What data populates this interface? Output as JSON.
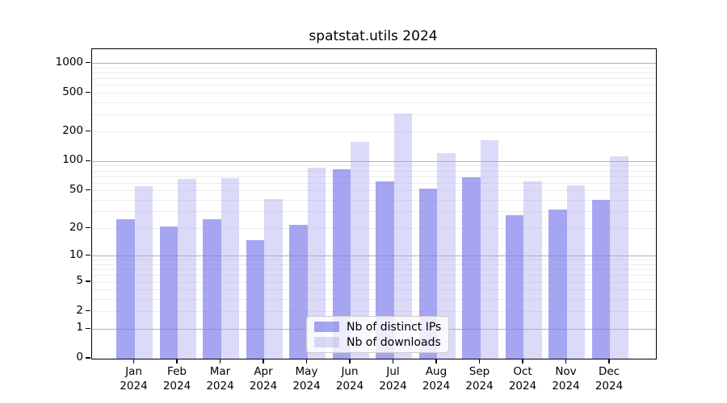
{
  "chart_data": {
    "type": "bar",
    "title": "spatstat.utils 2024",
    "categories": [
      "Jan",
      "Feb",
      "Mar",
      "Apr",
      "May",
      "Jun",
      "Jul",
      "Aug",
      "Sep",
      "Oct",
      "Nov",
      "Dec"
    ],
    "x_year_label": "2024",
    "series": [
      {
        "name": "Nb of distinct IPs",
        "values": [
          25,
          21,
          25,
          15,
          22,
          84,
          62,
          53,
          69,
          28,
          32,
          40
        ]
      },
      {
        "name": "Nb of downloads",
        "values": [
          56,
          66,
          68,
          41,
          86,
          160,
          307,
          122,
          166,
          63,
          57,
          114
        ]
      }
    ],
    "yticks": [
      0,
      1,
      2,
      5,
      10,
      20,
      50,
      100,
      200,
      500,
      1000
    ],
    "ytick_labels": [
      "0",
      "1",
      "2",
      "5",
      "10",
      "20",
      "50",
      "100",
      "200",
      "500",
      "1000"
    ],
    "yscale": "log10(1+x)",
    "ylim": [
      0,
      1400
    ],
    "xlabel": "",
    "ylabel": "",
    "grid": "horizontal major at decades plus faint log minors",
    "legend_position": "inside bottom-center"
  },
  "colors": {
    "bar_distinct_ips": "#8382eb",
    "bar_distinct_ips_alpha": 0.72,
    "bar_downloads": "#a9a7ee",
    "bar_downloads_alpha": 0.42,
    "grid_major": "#b2b2b2",
    "grid_minor": "#ececec",
    "axis": "#000000",
    "legend_border": "#cccccc"
  }
}
